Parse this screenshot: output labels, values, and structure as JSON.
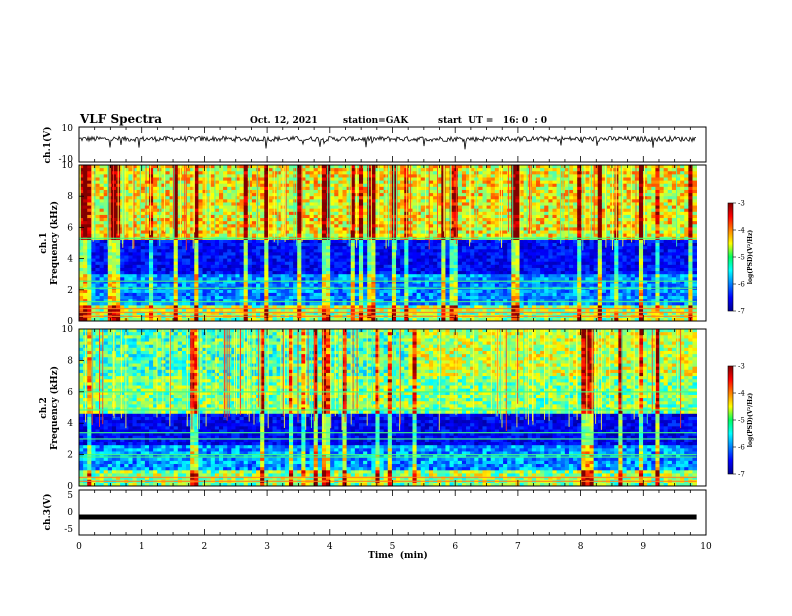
{
  "header": {
    "title": "VLF Spectra",
    "date": "Oct. 12, 2021",
    "station": "station=GAK",
    "start": "start  UT =   16: 0  : 0"
  },
  "chart_data": [
    {
      "type": "line",
      "panel": "ch1-waveform",
      "ylabel": "ch.1(V)",
      "ylim": [
        -10,
        10
      ],
      "yticks": [
        "10",
        "-10"
      ],
      "xlim": [
        0,
        10
      ],
      "series": [
        {
          "values_note": "",
          "baseline": 3.2,
          "noise_amplitude": 1.5
        }
      ]
    },
    {
      "type": "heatmap",
      "panel": "ch1-spectrogram",
      "ylabel_line1": "ch.1",
      "ylabel_line2": "Frequency (kHz)",
      "ylim": [
        0,
        10
      ],
      "yticks": [
        "0",
        "2",
        "4",
        "6",
        "8",
        "10"
      ],
      "xlim": [
        0,
        9.85
      ],
      "colorbar": {
        "label": "log(PSD)(V²/Hz)",
        "range": [
          -7,
          -3
        ],
        "ticks": [
          "-3",
          "-4",
          "-5",
          "-6",
          "-7"
        ]
      }
    },
    {
      "type": "heatmap",
      "panel": "ch2-spectrogram",
      "ylabel_line1": "ch.2",
      "ylabel_line2": "Frequency (kHz)",
      "ylim": [
        0,
        10
      ],
      "yticks": [
        "0",
        "2",
        "4",
        "6",
        "8",
        "10"
      ],
      "xlim": [
        0,
        9.85
      ],
      "colorbar": {
        "label": "log(PSD)(V²/Hz)",
        "range": [
          -7,
          -3
        ],
        "ticks": [
          "-3",
          "-4",
          "-5",
          "-6",
          "-7"
        ]
      }
    },
    {
      "type": "line",
      "panel": "ch3-waveform",
      "ylabel": "ch.3(V)",
      "ylim": [
        -5,
        5
      ],
      "yticks": [
        "5",
        "0",
        "-5"
      ],
      "xlim": [
        0,
        10
      ],
      "series": [
        {
          "constant": -1.0
        }
      ]
    }
  ],
  "xaxis": {
    "label": "Time  (min)",
    "ticks": [
      "0",
      "1",
      "2",
      "3",
      "4",
      "5",
      "6",
      "7",
      "8",
      "9",
      "10"
    ]
  }
}
